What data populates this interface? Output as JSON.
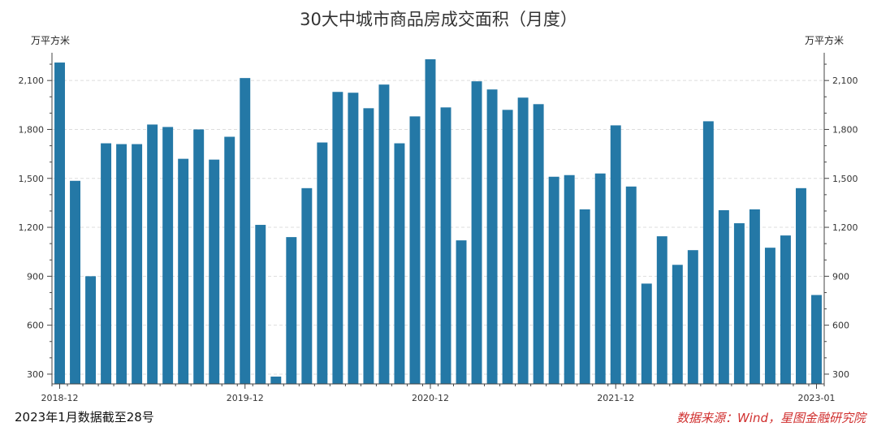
{
  "chart_data": {
    "type": "bar",
    "title": "30大中城市商品房成交面积（月度）",
    "ylabel_left": "万平方米",
    "ylabel_right": "万平方米",
    "ylim": [
      240,
      2270
    ],
    "yticks": [
      300,
      600,
      900,
      1200,
      1500,
      1800,
      2100
    ],
    "ytick_labels": [
      "300",
      "600",
      "900",
      "1,200",
      "1,500",
      "1,800",
      "2,100"
    ],
    "x_tick_labels": [
      {
        "index": 0,
        "label": "2018-12"
      },
      {
        "index": 12,
        "label": "2019-12"
      },
      {
        "index": 24,
        "label": "2020-12"
      },
      {
        "index": 36,
        "label": "2021-12"
      },
      {
        "index": 49,
        "label": "2023-01"
      }
    ],
    "grid": true,
    "bar_color": "#2478a6",
    "series": [
      {
        "values": [
          2210,
          1485,
          900,
          1715,
          1710,
          1710,
          1830,
          1815,
          1620,
          1800,
          1615,
          1755,
          2115,
          1215,
          285,
          1140,
          1440,
          1720,
          2030,
          2025,
          1930,
          2075,
          1715,
          1880,
          2230,
          1935,
          1120,
          2095,
          2045,
          1920,
          1995,
          1955,
          1510,
          1520,
          1310,
          1530,
          1825,
          1450,
          855,
          1145,
          970,
          1060,
          1850,
          1305,
          1225,
          1310,
          1075,
          1150,
          1440,
          785
        ]
      }
    ]
  },
  "header": {
    "title": "30大中城市商品房成交面积（月度）",
    "unit_left": "万平方米",
    "unit_right": "万平方米"
  },
  "footer": {
    "note": "2023年1月数据截至28号",
    "source": "数据来源：Wind，星图金融研究院"
  }
}
